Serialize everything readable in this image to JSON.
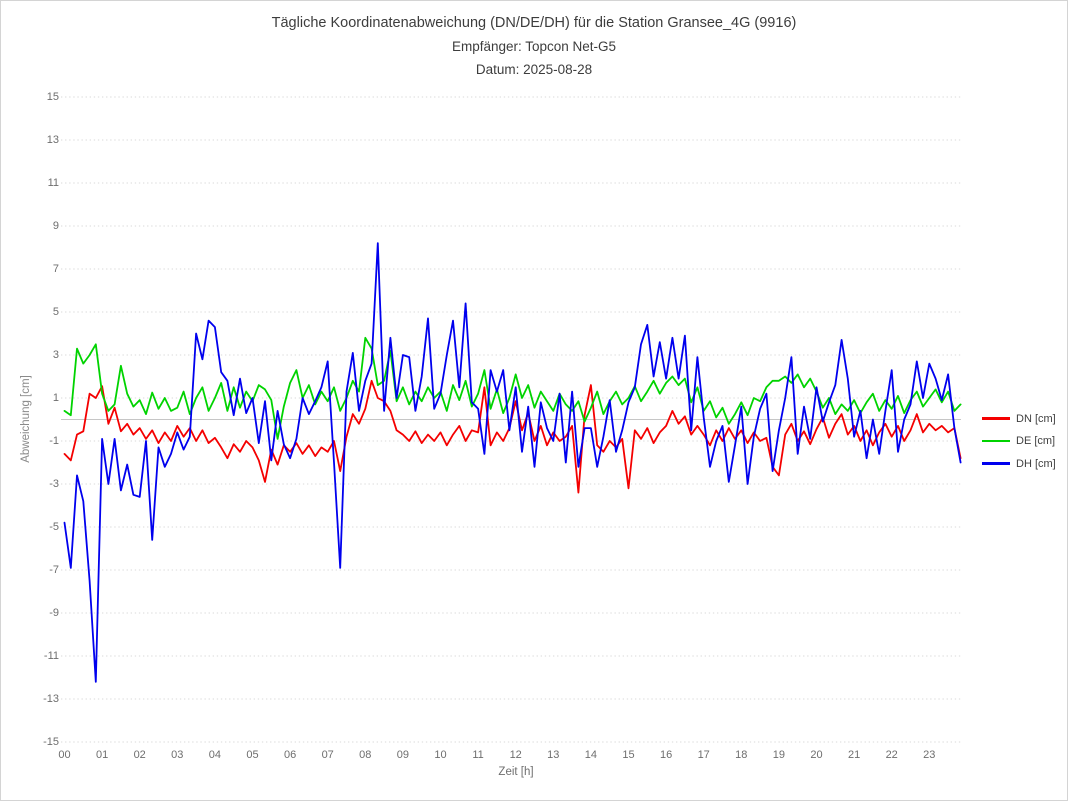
{
  "chart_data": {
    "type": "line",
    "title": "Tägliche Koordinatenabweichung (DN/DE/DH) für die Station Gransee_4G (9916)",
    "subtitle": "Empfänger: Topcon Net-G5",
    "date_label": "Datum: 2025-08-28",
    "xlabel": "Zeit [h]",
    "ylabel": "Abweichung [cm]",
    "xlim": [
      0,
      24
    ],
    "ylim": [
      -15,
      15
    ],
    "x_ticks": [
      "00",
      "01",
      "02",
      "03",
      "04",
      "05",
      "06",
      "07",
      "08",
      "09",
      "10",
      "11",
      "12",
      "13",
      "14",
      "15",
      "16",
      "17",
      "18",
      "19",
      "20",
      "21",
      "22",
      "23"
    ],
    "y_ticks": [
      15,
      13,
      11,
      9,
      7,
      5,
      3,
      1,
      -1,
      -3,
      -5,
      -7,
      -9,
      -11,
      -13,
      -15
    ],
    "grid": {
      "horizontal_lines": "dotted",
      "zero_line": "solid",
      "vertical_lines": "none"
    },
    "grid_color": "#d8d8d8",
    "zero_line_color": "#c6c6c6",
    "legend_position": "right",
    "sample_interval_minutes": 10,
    "series": [
      {
        "name": "DN [cm]",
        "color": "#f40000",
        "values": [
          -1.6,
          -1.9,
          -0.7,
          -0.55,
          1.2,
          1.0,
          1.55,
          -0.2,
          0.55,
          -0.55,
          -0.2,
          -0.7,
          -0.4,
          -0.9,
          -0.5,
          -1.1,
          -0.6,
          -1.0,
          -0.3,
          -0.8,
          -0.4,
          -1.0,
          -0.5,
          -1.1,
          -0.85,
          -1.3,
          -1.8,
          -1.15,
          -1.5,
          -1.0,
          -1.3,
          -1.9,
          -2.9,
          -1.4,
          -2.1,
          -1.2,
          -1.5,
          -1.1,
          -1.6,
          -1.2,
          -1.7,
          -1.3,
          -1.5,
          -1.0,
          -2.4,
          -0.8,
          0.25,
          -0.2,
          0.5,
          1.8,
          1.0,
          0.85,
          0.4,
          -0.5,
          -0.7,
          -1.0,
          -0.55,
          -1.1,
          -0.7,
          -1.0,
          -0.6,
          -1.2,
          -0.7,
          -0.3,
          -1.0,
          -0.5,
          -0.6,
          1.5,
          -1.2,
          -0.6,
          -1.0,
          -0.4,
          0.85,
          -0.5,
          0.3,
          -1.0,
          -0.3,
          -1.2,
          -0.6,
          -1.0,
          -0.8,
          -0.3,
          -3.4,
          0.2,
          1.6,
          -1.2,
          -1.5,
          -1.0,
          -1.3,
          -0.9,
          -3.2,
          -0.5,
          -0.9,
          -0.4,
          -1.1,
          -0.6,
          -0.3,
          0.4,
          -0.2,
          0.15,
          -0.7,
          -0.3,
          -0.7,
          -1.2,
          -0.5,
          -1.0,
          -0.4,
          -0.9,
          -0.5,
          -1.1,
          -0.6,
          -1.0,
          -0.85,
          -2.2,
          -2.6,
          -0.7,
          -0.2,
          -1.0,
          -0.55,
          -1.15,
          -0.45,
          0.1,
          -0.85,
          -0.2,
          0.25,
          -0.7,
          -0.3,
          -1.0,
          -0.5,
          -1.2,
          -0.6,
          -0.2,
          -0.8,
          -0.3,
          -1.0,
          -0.5,
          0.25,
          -0.6,
          -0.2,
          -0.5,
          -0.3,
          -0.6,
          -0.4,
          -1.8
        ]
      },
      {
        "name": "DE [cm]",
        "color": "#00d300",
        "values": [
          0.4,
          0.2,
          3.3,
          2.6,
          3.0,
          3.5,
          1.2,
          0.4,
          0.7,
          2.5,
          1.2,
          0.6,
          0.9,
          0.25,
          1.25,
          0.5,
          1.0,
          0.4,
          0.55,
          1.3,
          0.25,
          1.0,
          1.5,
          0.4,
          1.0,
          1.7,
          0.4,
          1.5,
          0.55,
          1.3,
          0.85,
          1.6,
          1.4,
          0.9,
          -0.9,
          0.6,
          1.7,
          2.3,
          1.0,
          1.6,
          0.7,
          1.3,
          0.85,
          1.5,
          0.4,
          1.0,
          1.8,
          1.3,
          3.8,
          3.3,
          1.6,
          1.8,
          3.2,
          0.85,
          1.5,
          0.7,
          1.3,
          0.85,
          1.5,
          1.0,
          1.3,
          0.4,
          1.6,
          0.9,
          1.8,
          0.6,
          1.2,
          2.3,
          0.5,
          1.4,
          0.3,
          1.0,
          2.1,
          1.0,
          1.6,
          0.55,
          1.3,
          0.85,
          0.4,
          1.2,
          0.7,
          0.4,
          0.85,
          -0.1,
          0.55,
          1.3,
          0.25,
          0.85,
          1.3,
          0.7,
          1.0,
          1.55,
          0.85,
          1.3,
          1.8,
          1.2,
          1.7,
          2.0,
          1.6,
          1.9,
          0.8,
          1.5,
          0.4,
          0.85,
          0.1,
          0.55,
          -0.2,
          0.25,
          0.8,
          0.2,
          1.0,
          0.85,
          1.5,
          1.8,
          1.8,
          2.0,
          1.7,
          2.1,
          1.5,
          1.9,
          1.3,
          0.55,
          1.0,
          0.25,
          0.7,
          0.4,
          0.9,
          0.3,
          0.8,
          1.2,
          0.4,
          0.9,
          0.5,
          1.1,
          0.3,
          0.9,
          1.3,
          0.6,
          1.0,
          1.4,
          0.8,
          1.3,
          0.4,
          0.7
        ]
      },
      {
        "name": "DH [cm]",
        "color": "#0000ee",
        "values": [
          -4.8,
          -6.9,
          -2.6,
          -3.8,
          -7.5,
          -12.2,
          -0.9,
          -3.0,
          -0.9,
          -3.3,
          -2.1,
          -3.5,
          -3.6,
          -1.0,
          -5.6,
          -1.3,
          -2.2,
          -1.6,
          -0.6,
          -1.4,
          -0.8,
          4.0,
          2.8,
          4.6,
          4.3,
          2.2,
          1.8,
          0.2,
          1.9,
          0.3,
          1.0,
          -1.1,
          0.85,
          -1.9,
          0.4,
          -1.15,
          -1.8,
          -0.9,
          1.0,
          0.25,
          0.85,
          1.5,
          2.7,
          -2.0,
          -6.9,
          1.3,
          3.1,
          0.4,
          1.8,
          2.6,
          8.2,
          0.4,
          3.8,
          1.0,
          3.0,
          2.9,
          0.4,
          2.0,
          4.7,
          0.5,
          1.2,
          3.0,
          4.6,
          1.5,
          5.4,
          0.8,
          0.5,
          -1.6,
          2.3,
          1.3,
          2.3,
          -0.5,
          1.5,
          -1.5,
          0.6,
          -2.2,
          0.8,
          -0.4,
          -1.0,
          1.2,
          -2.0,
          1.3,
          -2.2,
          -0.4,
          -0.4,
          -2.2,
          -0.8,
          0.9,
          -1.5,
          -0.5,
          0.8,
          1.5,
          3.5,
          4.4,
          2.0,
          3.6,
          1.9,
          3.8,
          1.9,
          3.9,
          -0.5,
          2.9,
          0.1,
          -2.2,
          -1.0,
          -0.3,
          -2.9,
          -1.2,
          0.6,
          -3.0,
          -0.8,
          0.5,
          1.2,
          -2.4,
          -0.5,
          1.0,
          2.9,
          -1.6,
          0.6,
          -0.9,
          1.5,
          -0.1,
          0.8,
          1.6,
          3.7,
          1.9,
          -0.8,
          0.4,
          -1.8,
          0.0,
          -1.6,
          0.4,
          2.3,
          -1.5,
          0.0,
          0.7,
          2.7,
          1.0,
          2.6,
          1.9,
          0.9,
          2.1,
          -0.4,
          -2.0
        ]
      }
    ]
  }
}
